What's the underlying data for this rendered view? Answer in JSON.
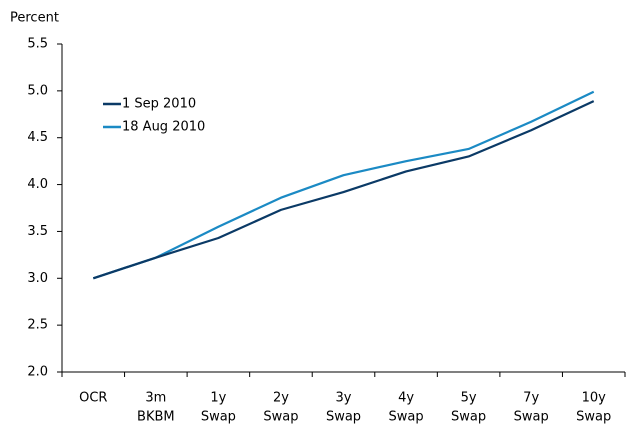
{
  "chart_data": {
    "type": "line",
    "y_axis_label": "Percent",
    "categories": [
      [
        "OCR"
      ],
      [
        "3m",
        "BKBM"
      ],
      [
        "1y",
        "Swap"
      ],
      [
        "2y",
        "Swap"
      ],
      [
        "3y",
        "Swap"
      ],
      [
        "4y",
        "Swap"
      ],
      [
        "5y",
        "Swap"
      ],
      [
        "7y",
        "Swap"
      ],
      [
        "10y",
        "Swap"
      ]
    ],
    "series": [
      {
        "name": "1 Sep 2010",
        "color": "#0b3a66",
        "values": [
          3.0,
          3.22,
          3.43,
          3.73,
          3.92,
          4.14,
          4.3,
          4.58,
          4.89
        ]
      },
      {
        "name": "18 Aug 2010",
        "color": "#1b8ac4",
        "values": [
          3.0,
          3.22,
          3.55,
          3.86,
          4.1,
          4.25,
          4.38,
          4.67,
          4.99
        ]
      }
    ],
    "ylim": [
      2,
      5.5
    ],
    "yticks": [
      {
        "value": 2,
        "label": "2.0"
      },
      2.5,
      {
        "value": 3,
        "label": "3.0"
      },
      3.5,
      {
        "value": 4,
        "label": "4.0"
      },
      4.5,
      {
        "value": 5,
        "label": "5.0"
      },
      5.5
    ],
    "grid": false,
    "legend": "upper left"
  }
}
